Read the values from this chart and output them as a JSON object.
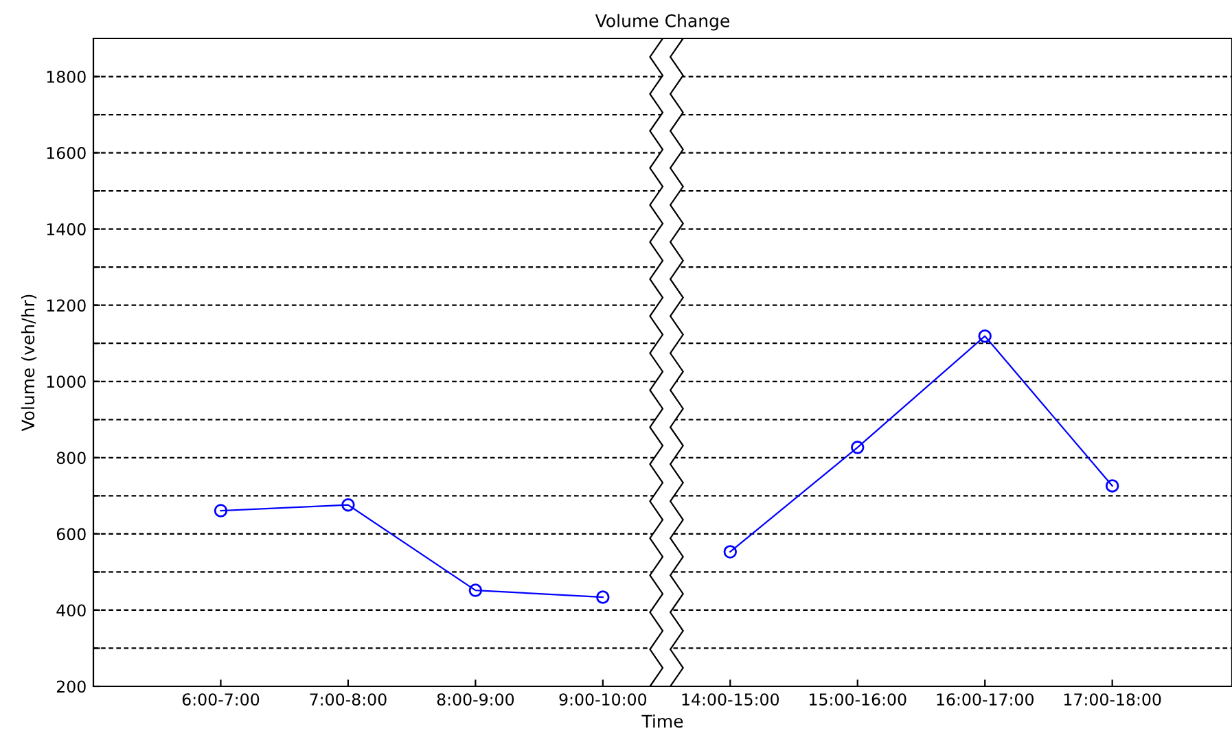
{
  "chart_data": {
    "type": "line",
    "title": "Volume Change",
    "xlabel": "Time",
    "ylabel": "Volume (veh/hr)",
    "categories": [
      "6:00-7:00",
      "7:00-8:00",
      "8:00-9:00",
      "9:00-10:00",
      "14:00-15:00",
      "15:00-16:00",
      "16:00-17:00",
      "17:00-18:00"
    ],
    "series": [
      {
        "color": "#0000ff",
        "values": [
          661,
          676,
          452,
          434,
          null,
          null,
          null,
          null
        ]
      },
      {
        "color": "#0000ff",
        "values": [
          null,
          null,
          null,
          null,
          553,
          827,
          1119,
          726
        ]
      }
    ],
    "ylim": [
      200,
      1900
    ],
    "yticks": [
      200,
      {
        "value": 300,
        "label": null
      },
      400,
      {
        "value": 500,
        "label": null
      },
      600,
      {
        "value": 700,
        "label": null
      },
      800,
      {
        "value": 900,
        "label": null
      },
      1000,
      {
        "value": 1100,
        "label": null
      },
      1200,
      {
        "value": 1300,
        "label": null
      },
      1400,
      {
        "value": 1500,
        "label": null
      },
      1600,
      {
        "value": 1700,
        "label": null
      },
      1800
    ],
    "grid": "y",
    "marker": "circle",
    "line_style": "solid",
    "legend": false
  }
}
